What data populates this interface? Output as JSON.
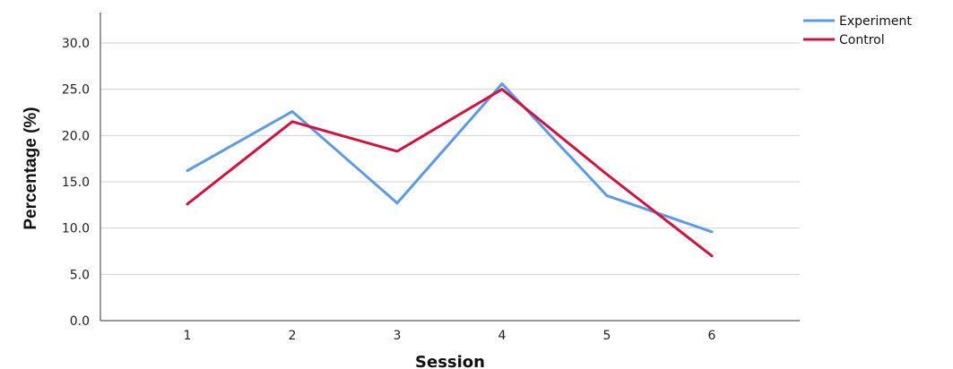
{
  "chart_data": {
    "type": "line",
    "xlabel": "Session",
    "ylabel": "Percentage (%)",
    "categories": [
      "1",
      "2",
      "3",
      "4",
      "5",
      "6"
    ],
    "ylim": [
      0,
      32.0
    ],
    "yticks": [
      "0.0",
      "5.0",
      "10.0",
      "15.0",
      "20.0",
      "25.0",
      "30.0"
    ],
    "grid": "horizontal",
    "legend_position": "top-right",
    "series": [
      {
        "name": "Experiment",
        "color": "#5b9be6",
        "values": [
          16.2,
          22.6,
          12.7,
          25.6,
          13.5,
          9.6
        ]
      },
      {
        "name": "Control",
        "color": "#d2113f",
        "values": [
          12.6,
          21.5,
          18.3,
          25.0,
          15.8,
          7.0
        ]
      }
    ]
  }
}
